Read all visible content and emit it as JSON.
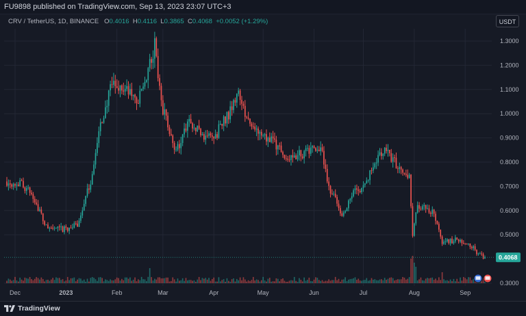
{
  "header": {
    "publish_text": "FU9898 published on TradingView.com, Sep 13, 2023 23:07 UTC+3"
  },
  "legend": {
    "symbol": "CRV / TetherUS, 1D, BINANCE",
    "o_label": "O",
    "o_value": "0.4016",
    "h_label": "H",
    "h_value": "0.4116",
    "l_label": "L",
    "l_value": "0.3865",
    "c_label": "C",
    "c_value": "0.4068",
    "change": "+0.0052 (+1.29%)"
  },
  "toolbar": {
    "currency": "USDT"
  },
  "footer": {
    "brand": "TradingView"
  },
  "colors": {
    "up": "#26a69a",
    "down": "#ef5350",
    "background": "#161a25",
    "grid": "#232735",
    "axis_text": "#b2b5be",
    "last_price": "#26a69a"
  },
  "chart_data": {
    "type": "candlestick",
    "price_scale": {
      "ticks": [
        "1.3000",
        "1.2000",
        "1.1000",
        "1.0000",
        "0.9000",
        "0.8000",
        "0.7000",
        "0.6000",
        "0.5000",
        "0.3000"
      ],
      "tick_values": [
        1.3,
        1.2,
        1.1,
        1.0,
        0.9,
        0.8,
        0.7,
        0.6,
        0.5,
        0.3
      ],
      "ylim": [
        0.38,
        1.32
      ],
      "last_price": 0.4068,
      "last_price_label": "0.4068"
    },
    "time_scale": {
      "labels": [
        "Dec",
        "2023",
        "Feb",
        "Mar",
        "Apr",
        "May",
        "Jun",
        "Jul",
        "Aug",
        "Sep"
      ]
    },
    "price_path": [
      [
        "2022-11-26",
        0.72
      ],
      [
        "2022-12-05",
        0.71
      ],
      [
        "2022-12-12",
        0.66
      ],
      [
        "2022-12-20",
        0.53
      ],
      [
        "2022-12-30",
        0.52
      ],
      [
        "2023-01-08",
        0.54
      ],
      [
        "2023-01-16",
        0.72
      ],
      [
        "2023-01-22",
        0.95
      ],
      [
        "2023-01-29",
        1.12
      ],
      [
        "2023-02-06",
        1.1
      ],
      [
        "2023-02-14",
        1.05
      ],
      [
        "2023-02-21",
        1.2
      ],
      [
        "2023-02-24",
        1.28
      ],
      [
        "2023-03-01",
        1.02
      ],
      [
        "2023-03-09",
        0.84
      ],
      [
        "2023-03-16",
        0.96
      ],
      [
        "2023-03-24",
        0.92
      ],
      [
        "2023-04-01",
        0.9
      ],
      [
        "2023-04-10",
        1.0
      ],
      [
        "2023-04-16",
        1.1
      ],
      [
        "2023-04-21",
        0.97
      ],
      [
        "2023-04-30",
        0.9
      ],
      [
        "2023-05-08",
        0.88
      ],
      [
        "2023-05-16",
        0.81
      ],
      [
        "2023-05-27",
        0.84
      ],
      [
        "2023-06-05",
        0.86
      ],
      [
        "2023-06-10",
        0.7
      ],
      [
        "2023-06-18",
        0.58
      ],
      [
        "2023-06-25",
        0.68
      ],
      [
        "2023-07-02",
        0.7
      ],
      [
        "2023-07-08",
        0.8
      ],
      [
        "2023-07-14",
        0.86
      ],
      [
        "2023-07-20",
        0.8
      ],
      [
        "2023-07-29",
        0.74
      ],
      [
        "2023-07-31",
        0.5
      ],
      [
        "2023-08-03",
        0.62
      ],
      [
        "2023-08-13",
        0.59
      ],
      [
        "2023-08-18",
        0.47
      ],
      [
        "2023-08-28",
        0.48
      ],
      [
        "2023-09-05",
        0.45
      ],
      [
        "2023-09-11",
        0.41
      ],
      [
        "2023-09-13",
        0.4068
      ]
    ],
    "volume_spikes": [
      [
        "2023-02-21",
        0.55
      ],
      [
        "2023-07-30",
        0.9
      ],
      [
        "2023-07-31",
        1.0
      ],
      [
        "2023-08-01",
        0.75
      ],
      [
        "2023-08-02",
        0.6
      ],
      [
        "2023-08-18",
        0.4
      ]
    ]
  }
}
